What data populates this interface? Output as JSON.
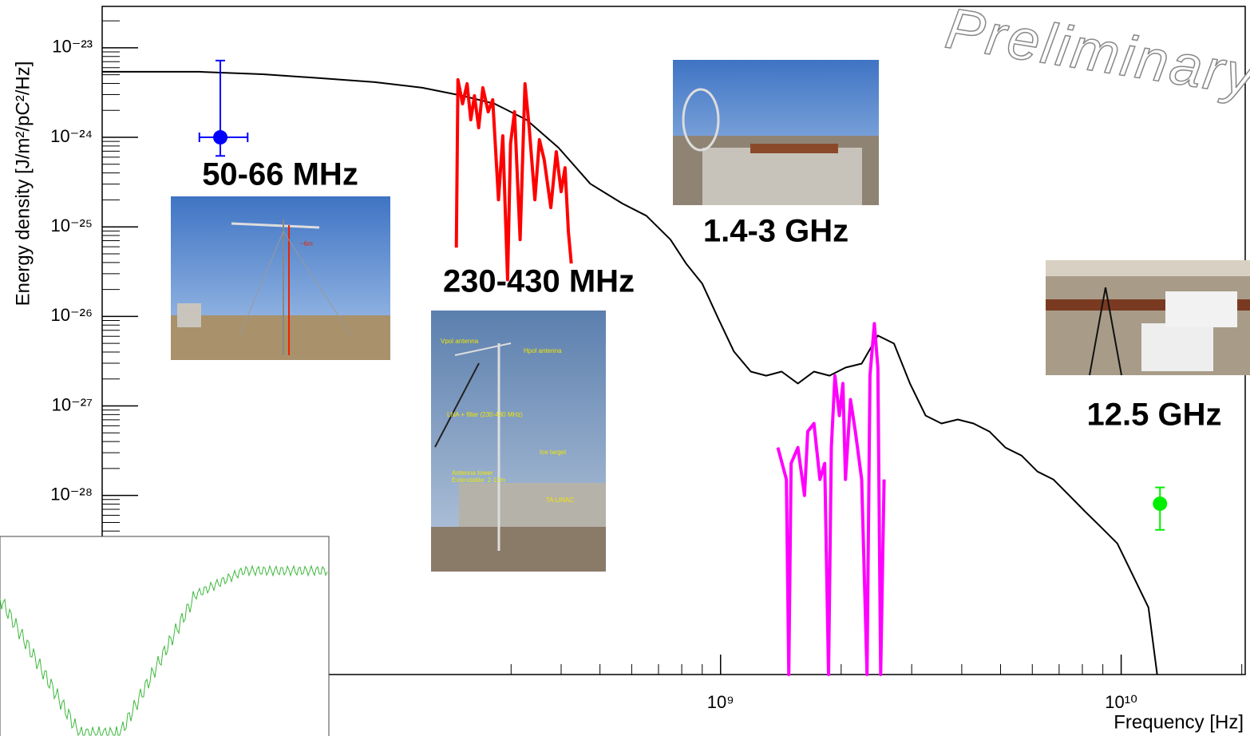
{
  "chart_data": {
    "type": "line",
    "xscale": "log",
    "yscale": "log",
    "xlabel": "Frequency [Hz]",
    "ylabel": "Energy density [J/m²/pC²/Hz]",
    "watermark": "Preliminary",
    "xlim": [
      28600000.0,
      20400000000.0
    ],
    "ylim": [
      1e-30,
      2.9e-23
    ],
    "xticks": [
      {
        "value": 1000000000.0,
        "label": "10⁹"
      },
      {
        "value": 10000000000.0,
        "label": "10¹⁰"
      }
    ],
    "minor_xticks": [
      300000000.0,
      400000000.0,
      500000000.0,
      600000000.0,
      700000000.0,
      800000000.0,
      900000000.0,
      2000000000.0,
      3000000000.0,
      4000000000.0,
      5000000000.0,
      6000000000.0,
      7000000000.0,
      8000000000.0,
      9000000000.0,
      20000000000.0
    ],
    "yticks": [
      {
        "value": 1e-28,
        "label": "10⁻²⁸"
      },
      {
        "value": 1e-27,
        "label": "10⁻²⁷"
      },
      {
        "value": 1e-26,
        "label": "10⁻²⁶"
      },
      {
        "value": 1e-25,
        "label": "10⁻²⁵"
      },
      {
        "value": 1e-24,
        "label": "10⁻²⁴"
      },
      {
        "value": 1e-23,
        "label": "10⁻²³"
      }
    ],
    "minor_yticks": [
      2e-29,
      3e-29,
      4e-29,
      5e-29,
      6e-29,
      7e-29,
      8e-29,
      9e-29,
      2e-28,
      3e-28,
      4e-28,
      5e-28,
      6e-28,
      7e-28,
      8e-28,
      9e-28,
      2e-27,
      3e-27,
      4e-27,
      5e-27,
      6e-27,
      7e-27,
      8e-27,
      9e-27,
      2e-26,
      3e-26,
      4e-26,
      5e-26,
      6e-26,
      7e-26,
      8e-26,
      9e-26,
      2e-25,
      3e-25,
      4e-25,
      5e-25,
      6e-25,
      7e-25,
      8e-25,
      9e-25,
      2e-24,
      3e-24,
      4e-24,
      5e-24,
      6e-24,
      7e-24,
      8e-24,
      9e-24,
      2e-23
    ],
    "series": [
      {
        "color": "#000000",
        "x": [
          28600000.0,
          50000000.0,
          72000000.0,
          100000000.0,
          137000000.0,
          180000000.0,
          227000000.0,
          273000000.0,
          328000000.0,
          394000000.0,
          473000000.0,
          569000000.0,
          653000000.0,
          750000000.0,
          820000000.0,
          900000000.0,
          990000000.0,
          1080000000.0,
          1190000000.0,
          1300000000.0,
          1420000000.0,
          1560000000.0,
          1710000000.0,
          1870000000.0,
          2050000000.0,
          2250000000.0,
          2470000000.0,
          2710000000.0,
          2970000000.0,
          3250000000.0,
          3560000000.0,
          3910000000.0,
          4280000000.0,
          4690000000.0,
          5140000000.0,
          5640000000.0,
          6180000000.0,
          6770000000.0,
          7420000000.0,
          8130000000.0,
          8920000000.0,
          9780000000.0,
          10700000000.0,
          11700000000.0,
          12300000000.0
        ],
        "values": [
          5.4e-24,
          5.4e-24,
          5.07e-24,
          4.58e-24,
          4.13e-24,
          3.58e-24,
          2.91e-24,
          2.37e-24,
          1.57e-24,
          7.66e-25,
          3.03e-25,
          1.82e-25,
          1.33e-25,
          7.2e-26,
          3.9e-26,
          2.32e-26,
          9.2e-27,
          4.05e-27,
          2.42e-27,
          2.18e-27,
          2.42e-27,
          1.78e-27,
          2.42e-27,
          2.18e-27,
          2.68e-27,
          2.97e-27,
          6.1e-27,
          4.97e-27,
          1.78e-27,
          7.8e-28,
          6.37e-28,
          7.05e-28,
          6.37e-28,
          5.18e-28,
          3.43e-28,
          2.79e-28,
          1.85e-28,
          1.51e-28,
          1e-28,
          6.6e-29,
          4.4e-29,
          2.91e-29,
          1.28e-29,
          5.6e-30,
          1e-30
        ]
      },
      {
        "color": "#ff0000",
        "x": [
          219000000.0,
          221000000.0,
          227000000.0,
          233000000.0,
          238000000.0,
          243000000.0,
          249000000.0,
          255000000.0,
          263000000.0,
          270000000.0,
          279000000.0,
          286000000.0,
          294000000.0,
          299000000.0,
          306000000.0,
          316000000.0,
          325000000.0,
          333000000.0,
          344000000.0,
          353000000.0,
          363000000.0,
          377000000.0,
          389000000.0,
          400000000.0,
          409000000.0,
          417000000.0,
          424000000.0
        ],
        "values": [
          5.86e-26,
          4.4e-24,
          2.37e-24,
          3.97e-24,
          1.57e-24,
          2.91e-24,
          1.28e-24,
          3.58e-24,
          1.93e-24,
          2.63e-24,
          2.01e-25,
          1.04e-24,
          2.57e-26,
          8.5e-25,
          1.93e-24,
          7.2e-26,
          3.97e-24,
          1.28e-24,
          2.01e-25,
          9.4e-25,
          5.6e-25,
          1.64e-25,
          6.9e-25,
          2.47e-25,
          4.58e-25,
          8.8e-26,
          3.9e-26
        ]
      },
      {
        "color": "#ff00ff",
        "x": [
          1390000000.0,
          1460000000.0,
          1480000000.0,
          1500000000.0,
          1560000000.0,
          1620000000.0,
          1650000000.0,
          1710000000.0,
          1770000000.0,
          1820000000.0,
          1860000000.0,
          1890000000.0,
          1930000000.0,
          1980000000.0,
          2020000000.0,
          2050000000.0,
          2110000000.0,
          2170000000.0,
          2250000000.0,
          2320000000.0,
          2360000000.0,
          2420000000.0,
          2470000000.0,
          2510000000.0,
          2560000000.0
        ],
        "values": [
          3.43e-28,
          1.51e-28,
          1e-30,
          2.28e-28,
          3.43e-28,
          1e-28,
          5.18e-28,
          6.37e-28,
          1.51e-28,
          2.28e-28,
          1e-30,
          3.43e-28,
          2.18e-27,
          7.8e-28,
          1.78e-27,
          1.51e-28,
          1.18e-27,
          5.18e-28,
          1.51e-28,
          1e-30,
          2.18e-27,
          8.3e-27,
          2.68e-27,
          1e-30,
          1.51e-28
        ]
      }
    ],
    "points": [
      {
        "color": "#0000ff",
        "x": 56400000.0,
        "y": 1e-24,
        "xlow": 50000000.0,
        "xhigh": 66000000.0,
        "ylow": 6.2e-25,
        "yhigh": 7.2e-24
      },
      {
        "color": "#00ee00",
        "x": 12500000000.0,
        "y": 8.1e-29,
        "xlow": 12500000000.0,
        "xhigh": 12500000000.0,
        "ylow": 4.13e-29,
        "yhigh": 1.23e-28
      }
    ],
    "annotations": [
      {
        "text": "50-66 MHz",
        "color": "#0000ff"
      },
      {
        "text": "230-430 MHz",
        "color": "#ff0000"
      },
      {
        "text": "1.4-3 GHz",
        "color": "#cc00cc"
      },
      {
        "text": "12.5 GHz",
        "color": "#00ee00"
      }
    ],
    "photo_labels": [
      "~6m",
      "Vpol antenna",
      "Hpol antenna",
      "LNA + filter (230-430 MHz)",
      "Ice target",
      "Antenna tower",
      "Extendable: 2-12m",
      "TA LINAC"
    ]
  }
}
